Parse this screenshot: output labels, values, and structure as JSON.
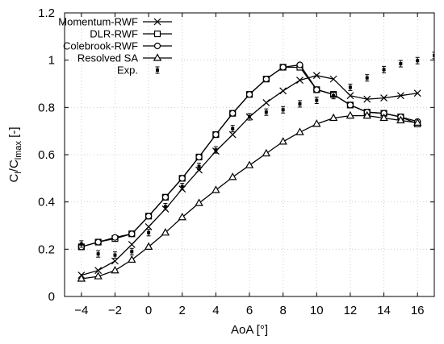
{
  "chart_data": {
    "type": "line",
    "xlabel": "AoA [°]",
    "ylabel": {
      "base": "C",
      "sub1": "l",
      "sep": "/C",
      "sub2": "lmax",
      "unit": " [-]"
    },
    "xlim": [
      -5,
      17
    ],
    "ylim": [
      0,
      1.2
    ],
    "xticks": [
      -4,
      -2,
      0,
      2,
      4,
      6,
      8,
      10,
      12,
      14,
      16
    ],
    "yticks": [
      0,
      0.2,
      0.4,
      0.6,
      0.8,
      1,
      1.2
    ],
    "ytick_labels": [
      "0",
      "0.2",
      "0.4",
      "0.6",
      "0.8",
      "1",
      "1.2"
    ],
    "legend_position": "top-left",
    "series": [
      {
        "name": "Momentum-RWF",
        "marker": "cross",
        "style": "line",
        "points": [
          [
            -4,
            0.09
          ],
          [
            -3,
            0.11
          ],
          [
            -2,
            0.15
          ],
          [
            -1,
            0.22
          ],
          [
            0,
            0.295
          ],
          [
            1,
            0.37
          ],
          [
            2,
            0.455
          ],
          [
            3,
            0.535
          ],
          [
            4,
            0.615
          ],
          [
            5,
            0.685
          ],
          [
            6,
            0.76
          ],
          [
            7,
            0.82
          ],
          [
            8,
            0.87
          ],
          [
            9,
            0.915
          ],
          [
            10,
            0.935
          ],
          [
            11,
            0.92
          ],
          [
            12,
            0.85
          ],
          [
            13,
            0.835
          ],
          [
            14,
            0.84
          ],
          [
            15,
            0.85
          ],
          [
            16,
            0.86
          ]
        ]
      },
      {
        "name": "DLR-RWF",
        "marker": "square",
        "style": "line",
        "points": [
          [
            -4,
            0.21
          ],
          [
            -3,
            0.23
          ],
          [
            -2,
            0.245
          ],
          [
            -1,
            0.265
          ],
          [
            0,
            0.34
          ],
          [
            1,
            0.42
          ],
          [
            2,
            0.5
          ],
          [
            3,
            0.59
          ],
          [
            4,
            0.685
          ],
          [
            5,
            0.775
          ],
          [
            6,
            0.855
          ],
          [
            7,
            0.92
          ],
          [
            8,
            0.97
          ],
          [
            9,
            0.97
          ],
          [
            10,
            0.875
          ],
          [
            11,
            0.855
          ],
          [
            12,
            0.81
          ],
          [
            13,
            0.78
          ],
          [
            14,
            0.775
          ],
          [
            15,
            0.76
          ],
          [
            16,
            0.73
          ]
        ]
      },
      {
        "name": "Colebrook-RWF",
        "marker": "circle",
        "style": "line",
        "points": [
          [
            -4,
            0.21
          ],
          [
            -3,
            0.23
          ],
          [
            -2,
            0.25
          ],
          [
            -1,
            0.265
          ],
          [
            0,
            0.34
          ],
          [
            1,
            0.42
          ],
          [
            2,
            0.5
          ],
          [
            3,
            0.59
          ],
          [
            4,
            0.685
          ],
          [
            5,
            0.775
          ],
          [
            6,
            0.855
          ],
          [
            7,
            0.92
          ],
          [
            8,
            0.97
          ],
          [
            9,
            0.98
          ],
          [
            10,
            0.875
          ],
          [
            11,
            0.855
          ],
          [
            12,
            0.81
          ],
          [
            13,
            0.78
          ],
          [
            14,
            0.775
          ],
          [
            15,
            0.76
          ],
          [
            16,
            0.74
          ]
        ]
      },
      {
        "name": "Resolved SA",
        "marker": "triangle",
        "style": "line",
        "points": [
          [
            -4,
            0.075
          ],
          [
            -3,
            0.085
          ],
          [
            -2,
            0.11
          ],
          [
            -1,
            0.155
          ],
          [
            0,
            0.21
          ],
          [
            1,
            0.27
          ],
          [
            2,
            0.335
          ],
          [
            3,
            0.395
          ],
          [
            4,
            0.45
          ],
          [
            5,
            0.505
          ],
          [
            6,
            0.555
          ],
          [
            7,
            0.605
          ],
          [
            8,
            0.655
          ],
          [
            9,
            0.695
          ],
          [
            10,
            0.73
          ],
          [
            11,
            0.755
          ],
          [
            12,
            0.765
          ],
          [
            13,
            0.765
          ],
          [
            14,
            0.755
          ],
          [
            15,
            0.745
          ],
          [
            16,
            0.735
          ]
        ]
      },
      {
        "name": "Exp.",
        "marker": "dot-errorbar",
        "style": "points",
        "points": [
          [
            -4,
            0.222
          ],
          [
            -3,
            0.18
          ],
          [
            -2,
            0.175
          ],
          [
            -1,
            0.19
          ],
          [
            0,
            0.27
          ],
          [
            1,
            0.38
          ],
          [
            2,
            0.465
          ],
          [
            3,
            0.55
          ],
          [
            4,
            0.62
          ],
          [
            5,
            0.71
          ],
          [
            6,
            0.76
          ],
          [
            7,
            0.78
          ],
          [
            8,
            0.79
          ],
          [
            9,
            0.815
          ],
          [
            10,
            0.83
          ],
          [
            11,
            0.85
          ],
          [
            12,
            0.885
          ],
          [
            13,
            0.925
          ],
          [
            14,
            0.96
          ],
          [
            15,
            0.985
          ],
          [
            16,
            0.998
          ],
          [
            17,
            1.02
          ]
        ]
      }
    ]
  }
}
